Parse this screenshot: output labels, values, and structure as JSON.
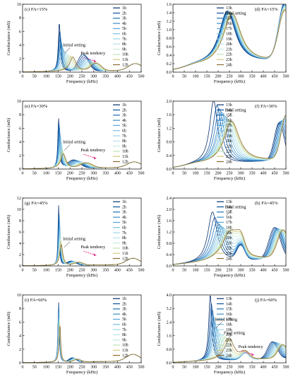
{
  "legend_colors": {
    "early": [
      "#08306b",
      "#0b4f9c",
      "#1f6fba",
      "#3a8cc8",
      "#58a7d8",
      "#7cc0e2",
      "#9dd4ea",
      "#b7e3ea",
      "#c6ebd9",
      "#bfe3b4",
      "#d5c87e",
      "#8a6b2e"
    ],
    "late": [
      "#08306b",
      "#0b4f9c",
      "#1f6fba",
      "#3a8cc8",
      "#58a7d8",
      "#7cc0e2",
      "#9dd4ea",
      "#b7e3ea",
      "#c6ebd9",
      "#bfe3b4",
      "#d5c87e",
      "#8a6b2e"
    ]
  },
  "chart_data": [
    {
      "type": "line",
      "panel": "a",
      "label": "(c) FA=15%",
      "xlabel": "Frequency (kHz)",
      "ylabel": "Conductance (mS)",
      "xlim": [
        0,
        500
      ],
      "ylim": [
        0,
        10
      ],
      "xticks": [
        0,
        50,
        100,
        150,
        200,
        250,
        300,
        350,
        400,
        450,
        500
      ],
      "yticks": [
        0,
        2,
        4,
        6,
        8,
        10
      ],
      "legend": [
        "1h",
        "2h",
        "3h",
        "4h",
        "5h",
        "6h",
        "7h",
        "8h",
        "9h",
        "10h",
        "11h",
        "12h"
      ],
      "annotations": [
        "Initial setting",
        "Peak tendency"
      ],
      "peak": {
        "f0": [
          155,
          157,
          159,
          162,
          166,
          170,
          176,
          183,
          190,
          198,
          205,
          212
        ],
        "a0": [
          7.2,
          6.0,
          5.2,
          4.5,
          3.9,
          3.4,
          3.0,
          2.7,
          2.5,
          2.3,
          2.2,
          2.1
        ],
        "w0": [
          5,
          6,
          7,
          8,
          9,
          10,
          11,
          12,
          13,
          14,
          15,
          16
        ]
      },
      "second": {
        "f": [
          255,
          260,
          265,
          270,
          275,
          280,
          285,
          290,
          295,
          300,
          305,
          310
        ],
        "a": [
          2.5,
          2.3,
          2.1,
          1.9,
          1.8,
          1.6,
          1.5,
          1.4,
          1.3,
          1.2,
          1.2,
          1.1
        ],
        "w": 30
      },
      "tail": {
        "f": 475,
        "a": 1.0,
        "w": 40
      }
    },
    {
      "type": "line",
      "panel": "b",
      "label": "(d) FA=15%",
      "xlabel": "Frequency (kHz)",
      "ylabel": "Conductance (mS)",
      "xlim": [
        0,
        500
      ],
      "ylim": [
        0,
        1.6
      ],
      "xticks": [
        0,
        50,
        100,
        150,
        200,
        250,
        300,
        350,
        400,
        450,
        500
      ],
      "yticks": [
        0,
        0.2,
        0.4,
        0.6,
        0.8,
        1.0,
        1.2,
        1.4,
        1.6
      ],
      "legend": [
        "13h",
        "14h",
        "15h",
        "16h",
        "17h",
        "18h",
        "19h",
        "20h",
        "21h",
        "22h",
        "23h",
        "24h"
      ],
      "annotations": [
        "Final setting"
      ],
      "peak": {
        "f0": [
          240,
          242,
          244,
          246,
          248,
          250,
          252,
          254,
          256,
          258,
          260,
          262
        ],
        "a0": [
          1.3,
          1.3,
          1.28,
          1.28,
          1.27,
          1.26,
          1.26,
          1.25,
          1.25,
          1.24,
          1.24,
          1.23
        ],
        "w0": [
          45,
          45,
          46,
          46,
          46,
          47,
          47,
          47,
          48,
          48,
          48,
          48
        ]
      },
      "second": {
        "f": [
          495,
          495,
          495,
          495,
          495,
          495,
          495,
          495,
          495,
          495,
          495,
          495
        ],
        "a": [
          1.35,
          1.33,
          1.31,
          1.29,
          1.27,
          1.25,
          1.24,
          1.22,
          1.2,
          1.18,
          1.16,
          1.14
        ],
        "w": 38
      },
      "tail": {
        "f": 100,
        "a": 0.05,
        "w": 60
      }
    },
    {
      "type": "line",
      "panel": "c",
      "label": "(e) FA=30%",
      "xlabel": "Frequency (kHz)",
      "ylabel": "Conductance (mS)",
      "xlim": [
        0,
        500
      ],
      "ylim": [
        0,
        10
      ],
      "xticks": [
        0,
        50,
        100,
        150,
        200,
        250,
        300,
        350,
        400,
        450,
        500
      ],
      "yticks": [
        0,
        2,
        4,
        6,
        8,
        10
      ],
      "legend": [
        "1h",
        "2h",
        "3h",
        "4h",
        "5h",
        "6h",
        "7h",
        "8h",
        "9h",
        "10h",
        "11h",
        "12h"
      ],
      "annotations": [
        "Initial setting",
        "Peak tendency"
      ],
      "peak": {
        "f0": [
          152,
          153,
          155,
          156,
          158,
          160,
          162,
          164,
          166,
          168,
          170,
          172
        ],
        "a0": [
          7.3,
          6.8,
          6.2,
          5.6,
          5.0,
          4.5,
          4.0,
          3.5,
          3.0,
          2.6,
          2.3,
          2.1
        ],
        "w0": [
          4,
          4.5,
          5,
          5.5,
          6,
          7,
          8,
          9,
          10,
          11,
          12,
          13
        ]
      },
      "second": {
        "f": [
          215,
          220,
          225,
          230,
          235,
          240,
          245,
          250,
          255,
          260,
          265,
          270
        ],
        "a": [
          1.2,
          1.15,
          1.1,
          1.05,
          1.0,
          0.95,
          0.9,
          0.85,
          0.8,
          0.78,
          0.75,
          0.72
        ],
        "w": 35
      },
      "tail": {
        "f": 470,
        "a": 0.8,
        "w": 40
      }
    },
    {
      "type": "line",
      "panel": "d",
      "label": "(f) FA=30%",
      "xlabel": "Frequency (kHz)",
      "ylabel": "Conductance (mS)",
      "xlim": [
        0,
        500
      ],
      "ylim": [
        0,
        2.0
      ],
      "xticks": [
        0,
        50,
        100,
        150,
        200,
        250,
        300,
        350,
        400,
        450,
        500
      ],
      "yticks": [
        0,
        0.4,
        0.8,
        1.2,
        1.6,
        2.0
      ],
      "legend": [
        "13h",
        "14h",
        "15h",
        "16h",
        "17h",
        "18h",
        "19h",
        "20h",
        "21h",
        "22h",
        "23h",
        "24h"
      ],
      "annotations": [
        "Final setting"
      ],
      "peak": {
        "f0": [
          180,
          195,
          205,
          215,
          222,
          230,
          236,
          242,
          247,
          252,
          256,
          260
        ],
        "a0": [
          1.9,
          1.75,
          1.65,
          1.55,
          1.5,
          1.42,
          1.38,
          1.33,
          1.3,
          1.28,
          1.26,
          1.25
        ],
        "w0": [
          22,
          24,
          26,
          28,
          30,
          32,
          34,
          36,
          38,
          40,
          41,
          42
        ]
      },
      "second": {
        "f": [
          470,
          475,
          480,
          485,
          490,
          492,
          494,
          496,
          498,
          499,
          500,
          500
        ],
        "a": [
          1.1,
          1.12,
          1.14,
          1.16,
          1.18,
          1.2,
          1.22,
          1.24,
          1.25,
          1.26,
          1.27,
          1.28
        ],
        "w": 30
      },
      "tail": {
        "f": 100,
        "a": 0.05,
        "w": 60
      }
    },
    {
      "type": "line",
      "panel": "e",
      "label": "(g) FA=45%",
      "xlabel": "Frequency (kHz)",
      "ylabel": "Conductance (mS)",
      "xlim": [
        0,
        500
      ],
      "ylim": [
        0,
        12
      ],
      "xticks": [
        0,
        50,
        100,
        150,
        200,
        250,
        300,
        350,
        400,
        450,
        500
      ],
      "yticks": [
        0,
        2,
        4,
        6,
        8,
        10,
        12
      ],
      "legend": [
        "1h",
        "2h",
        "3h",
        "4h",
        "5h",
        "6h",
        "7h",
        "8h",
        "9h",
        "10h",
        "11h",
        "12h"
      ],
      "annotations": [
        "Initial setting",
        "Peak tendency"
      ],
      "peak": {
        "f0": [
          152,
          153,
          154,
          155,
          156,
          157,
          158,
          159,
          160,
          161,
          162,
          163
        ],
        "a0": [
          10.6,
          9.8,
          9.0,
          8.2,
          7.4,
          6.6,
          5.9,
          5.3,
          4.8,
          4.4,
          4.0,
          3.7
        ],
        "w0": [
          3,
          3.3,
          3.6,
          4,
          4.4,
          4.8,
          5.2,
          5.6,
          6,
          6.5,
          7,
          7.5
        ]
      },
      "second": {
        "f": [
          205,
          208,
          211,
          214,
          217,
          220,
          223,
          226,
          229,
          232,
          235,
          238
        ],
        "a": [
          0.7,
          0.68,
          0.66,
          0.64,
          0.62,
          0.6,
          0.58,
          0.56,
          0.54,
          0.52,
          0.5,
          0.48
        ],
        "w": 25
      },
      "tail": {
        "f": 465,
        "a": 1.1,
        "w": 40
      }
    },
    {
      "type": "line",
      "panel": "f",
      "label": "(h) FA=45%",
      "xlabel": "Frequency (kHz)",
      "ylabel": "Conductance (mS)",
      "xlim": [
        0,
        500
      ],
      "ylim": [
        0,
        2.4
      ],
      "xticks": [
        0,
        50,
        100,
        150,
        200,
        250,
        300,
        350,
        400,
        450,
        500
      ],
      "yticks": [
        0,
        0.4,
        0.8,
        1.2,
        1.6,
        2.0,
        2.4
      ],
      "legend": [
        "13h",
        "14h",
        "15h",
        "16h",
        "17h",
        "18h",
        "19h",
        "20h",
        "21h",
        "22h",
        "23h",
        "24h"
      ],
      "annotations": [
        "Final setting"
      ],
      "peak": {
        "f0": [
          175,
          185,
          195,
          205,
          212,
          220,
          228,
          235,
          242,
          248,
          252,
          256
        ],
        "a0": [
          1.8,
          1.6,
          1.45,
          1.35,
          1.28,
          1.22,
          1.18,
          1.15,
          1.13,
          1.12,
          1.11,
          1.1
        ],
        "w0": [
          25,
          27,
          29,
          31,
          33,
          35,
          37,
          39,
          41,
          43,
          44,
          45
        ]
      },
      "second": {
        "f": [
          450,
          455,
          460,
          463,
          466,
          470,
          473,
          476,
          479,
          482,
          485,
          488
        ],
        "a": [
          1.1,
          1.08,
          1.06,
          1.05,
          1.04,
          1.03,
          1.02,
          1.01,
          1.0,
          0.99,
          0.98,
          0.97
        ],
        "w": 35
      },
      "tail": {
        "f": 300,
        "a": 0.5,
        "w": 25
      }
    },
    {
      "type": "line",
      "panel": "g",
      "label": "(i) FA=60%",
      "xlabel": "Frequency (kHz)",
      "ylabel": "Conductance (mS)",
      "xlim": [
        0,
        500
      ],
      "ylim": [
        0,
        10
      ],
      "xticks": [
        0,
        50,
        100,
        150,
        200,
        250,
        300,
        350,
        400,
        450,
        500
      ],
      "yticks": [
        0,
        2,
        4,
        6,
        8,
        10
      ],
      "legend": [
        "1h",
        "2h",
        "3h",
        "4h",
        "5h",
        "6h",
        "7h",
        "8h",
        "9h",
        "10h",
        "11h",
        "12h"
      ],
      "annotations": [],
      "peak": {
        "f0": [
          152,
          152,
          153,
          153,
          154,
          154,
          155,
          155,
          156,
          156,
          157,
          157
        ],
        "a0": [
          8.8,
          8.5,
          8.2,
          7.9,
          7.6,
          7.3,
          7.0,
          6.7,
          6.4,
          6.1,
          5.8,
          5.5
        ],
        "w0": [
          3,
          3.1,
          3.2,
          3.3,
          3.4,
          3.5,
          3.6,
          3.7,
          3.8,
          3.9,
          4,
          4.1
        ]
      },
      "second": {
        "f": [
          210,
          212,
          214,
          216,
          218,
          220,
          222,
          224,
          226,
          228,
          230,
          232
        ],
        "a": [
          0.6,
          0.58,
          0.56,
          0.54,
          0.52,
          0.5,
          0.48,
          0.46,
          0.44,
          0.42,
          0.4,
          0.38
        ],
        "w": 20
      },
      "tail": {
        "f": 465,
        "a": 1.0,
        "w": 40
      }
    },
    {
      "type": "line",
      "panel": "h",
      "label": "(j) FA=60%",
      "xlabel": "Frequency (kHz)",
      "ylabel": "Conductance (mS)",
      "xlim": [
        0,
        500
      ],
      "ylim": [
        0,
        4.0
      ],
      "xticks": [
        0,
        50,
        100,
        150,
        200,
        250,
        300,
        350,
        400,
        450,
        500
      ],
      "yticks": [
        0,
        0.8,
        1.6,
        2.4,
        3.2,
        4.0
      ],
      "legend": [
        "13h",
        "14h",
        "15h",
        "16h",
        "17h",
        "18h",
        "19h",
        "20h",
        "21h",
        "22h",
        "23h",
        "24h"
      ],
      "annotations": [
        "Initial setting",
        "Final setting",
        "Peak tendency"
      ],
      "peak": {
        "f0": [
          165,
          170,
          175,
          180,
          186,
          192,
          200,
          210,
          220,
          230,
          240,
          250
        ],
        "a0": [
          3.9,
          3.4,
          3.0,
          2.6,
          2.3,
          2.0,
          1.8,
          1.6,
          1.5,
          1.4,
          1.3,
          1.25
        ],
        "w0": [
          8,
          9,
          10,
          11,
          13,
          15,
          17,
          19,
          21,
          23,
          25,
          27
        ]
      },
      "second": {
        "f": [
          440,
          445,
          450,
          455,
          460,
          465,
          470,
          475,
          478,
          481,
          484,
          487
        ],
        "a": [
          1.0,
          0.98,
          0.96,
          0.94,
          0.92,
          0.9,
          0.88,
          0.86,
          0.84,
          0.82,
          0.8,
          0.78
        ],
        "w": 30
      },
      "tail": {
        "f": 320,
        "a": 0.4,
        "w": 25
      }
    }
  ]
}
